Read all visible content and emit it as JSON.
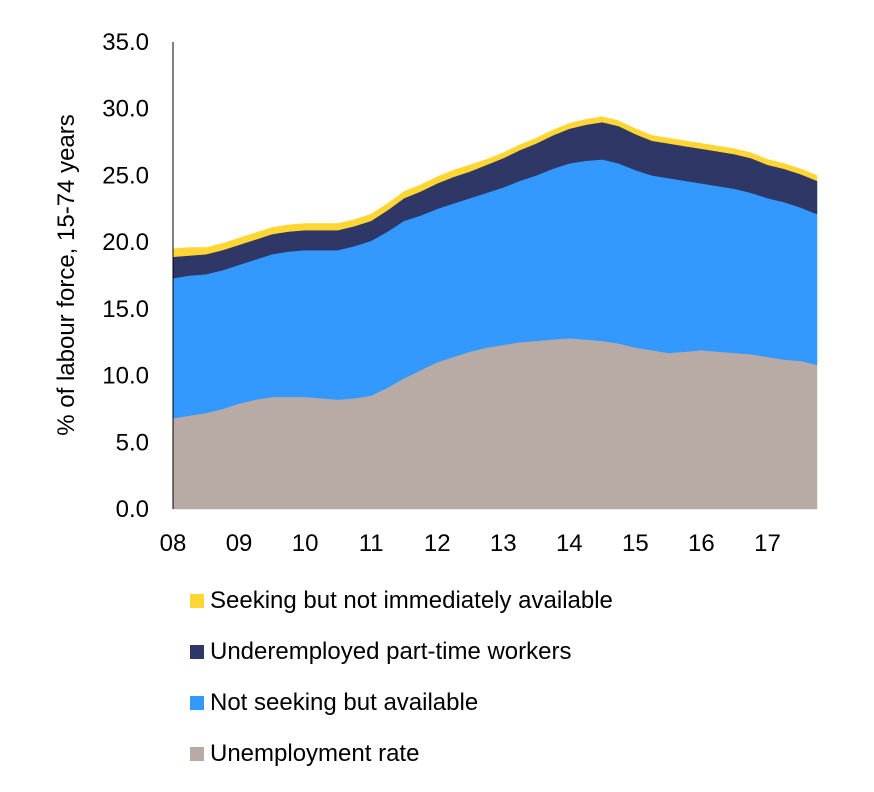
{
  "chart_data": {
    "type": "area",
    "stacked": true,
    "title": "",
    "xlabel": "",
    "ylabel": "% of labour force, 15-74 years",
    "ylim": [
      0,
      35
    ],
    "yticks": [
      "0.0",
      "5.0",
      "10.0",
      "15.0",
      "20.0",
      "25.0",
      "30.0",
      "35.0"
    ],
    "xticks": [
      "08",
      "09",
      "10",
      "11",
      "12",
      "13",
      "14",
      "15",
      "16",
      "17"
    ],
    "grid": false,
    "legend_position": "bottom",
    "x": [
      2008.0,
      2008.25,
      2008.5,
      2008.75,
      2009.0,
      2009.25,
      2009.5,
      2009.75,
      2010.0,
      2010.25,
      2010.5,
      2010.75,
      2011.0,
      2011.25,
      2011.5,
      2011.75,
      2012.0,
      2012.25,
      2012.5,
      2012.75,
      2013.0,
      2013.25,
      2013.5,
      2013.75,
      2014.0,
      2014.25,
      2014.5,
      2014.75,
      2015.0,
      2015.25,
      2015.5,
      2015.75,
      2016.0,
      2016.25,
      2016.5,
      2016.75,
      2017.0,
      2017.25,
      2017.5,
      2017.75
    ],
    "series": [
      {
        "name": "Unemployment rate",
        "color": "#b8aaa4",
        "values": [
          6.8,
          7.0,
          7.2,
          7.5,
          7.9,
          8.2,
          8.4,
          8.4,
          8.4,
          8.3,
          8.2,
          8.3,
          8.5,
          9.1,
          9.8,
          10.4,
          11.0,
          11.4,
          11.8,
          12.1,
          12.3,
          12.5,
          12.6,
          12.7,
          12.8,
          12.7,
          12.6,
          12.4,
          12.1,
          11.9,
          11.7,
          11.8,
          11.9,
          11.8,
          11.7,
          11.6,
          11.4,
          11.2,
          11.1,
          10.8
        ]
      },
      {
        "name": "Not seeking but available",
        "color": "#3399ff",
        "values": [
          10.5,
          10.5,
          10.4,
          10.4,
          10.4,
          10.5,
          10.7,
          10.9,
          11.0,
          11.1,
          11.2,
          11.4,
          11.6,
          11.7,
          11.8,
          11.6,
          11.5,
          11.5,
          11.5,
          11.6,
          11.8,
          12.1,
          12.4,
          12.8,
          13.1,
          13.4,
          13.6,
          13.5,
          13.3,
          13.1,
          13.1,
          12.8,
          12.5,
          12.4,
          12.3,
          12.1,
          11.9,
          11.8,
          11.5,
          11.3
        ]
      },
      {
        "name": "Underemployed part-time workers",
        "color": "#2e3766",
        "values": [
          1.6,
          1.5,
          1.5,
          1.5,
          1.5,
          1.5,
          1.5,
          1.5,
          1.5,
          1.5,
          1.5,
          1.5,
          1.5,
          1.6,
          1.7,
          1.8,
          1.9,
          2.0,
          2.0,
          2.1,
          2.2,
          2.3,
          2.4,
          2.5,
          2.6,
          2.7,
          2.8,
          2.8,
          2.7,
          2.6,
          2.6,
          2.6,
          2.6,
          2.6,
          2.6,
          2.6,
          2.5,
          2.5,
          2.5,
          2.5
        ]
      },
      {
        "name": "Seeking but not immediately available",
        "color": "#ffd633",
        "values": [
          0.6,
          0.6,
          0.5,
          0.5,
          0.5,
          0.5,
          0.5,
          0.5,
          0.5,
          0.5,
          0.5,
          0.5,
          0.5,
          0.5,
          0.5,
          0.5,
          0.5,
          0.5,
          0.5,
          0.4,
          0.4,
          0.4,
          0.4,
          0.4,
          0.4,
          0.4,
          0.4,
          0.4,
          0.4,
          0.4,
          0.4,
          0.4,
          0.4,
          0.4,
          0.4,
          0.4,
          0.4,
          0.4,
          0.4,
          0.4
        ]
      }
    ],
    "legend_order": [
      "Seeking but not immediately available",
      "Underemployed part-time workers",
      "Not seeking but available",
      "Unemployment rate"
    ]
  }
}
